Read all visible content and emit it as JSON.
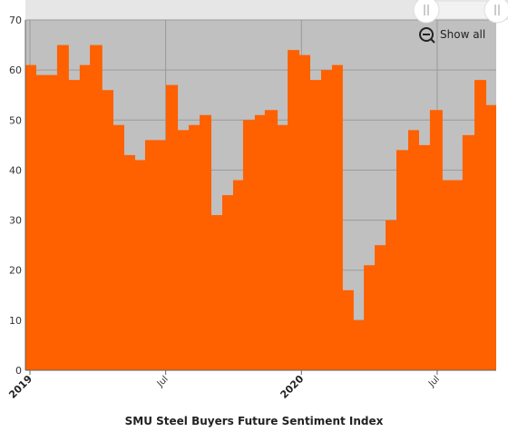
{
  "chart_data": {
    "type": "step-area",
    "title": "SMU Steel Buyers Future Sentiment Index",
    "button": "Show all",
    "color": "#ff6000",
    "grid": true,
    "x": [
      -0.2,
      0.28,
      1.2,
      1.72,
      2.2,
      2.65,
      3.2,
      3.69,
      4.17,
      4.65,
      5.09,
      6.01,
      6.54,
      7.02,
      7.5,
      8.02,
      8.5,
      8.98,
      9.42,
      9.94,
      10.38,
      10.95,
      11.39,
      11.91,
      12.39,
      12.87,
      13.35,
      13.83,
      14.31,
      14.76,
      15.24,
      15.72,
      16.2,
      16.72,
      17.2,
      17.68,
      18.24,
      19.12,
      19.65,
      20.17
    ],
    "values": [
      61,
      59,
      65,
      58,
      61,
      65,
      56,
      49,
      43,
      42,
      46,
      57,
      48,
      49,
      51,
      31,
      35,
      38,
      50,
      51,
      52,
      49,
      64,
      63,
      58,
      60,
      61,
      16,
      10,
      21,
      25,
      30,
      44,
      48,
      45,
      52,
      38,
      47,
      58,
      53
    ],
    "xlim": [
      -0.2,
      20.61
    ],
    "xticks": [
      {
        "value": 0,
        "label": "2019"
      },
      {
        "value": 6,
        "label": "Jul"
      },
      {
        "value": 12,
        "label": "2020"
      },
      {
        "value": 18,
        "label": "Jul"
      }
    ],
    "ylim": [
      0,
      70
    ],
    "yticks": [
      0,
      10,
      20,
      30,
      40,
      50,
      60,
      70
    ]
  }
}
